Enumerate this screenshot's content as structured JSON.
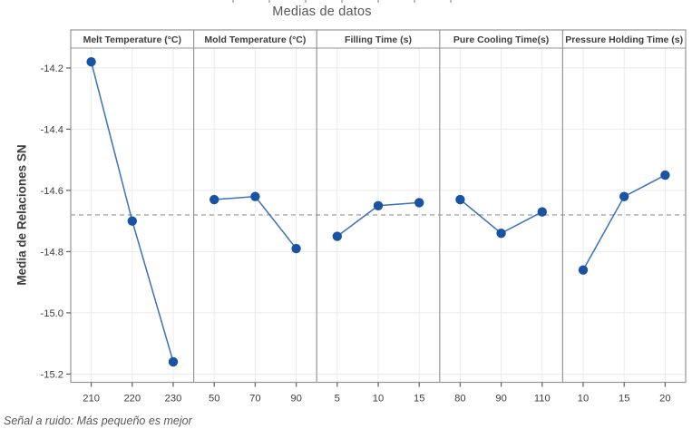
{
  "colors": {
    "accent_point": "#1A53A4",
    "accent_line": "#3B70BE",
    "grid": "#EBEBEB",
    "reference_dash": "#A8A8A8",
    "border": "#969696",
    "tick": "#606060",
    "text": "#3D3D3D",
    "title_text": "#565656",
    "footnote_text": "#585858"
  },
  "chart_data": {
    "type": "line",
    "subtype": "main-effects-plot",
    "title": "Medias de datos",
    "ylabel": "Media de Relaciones SN",
    "footnote": "Señal a ruido: Más pequeño es mejor",
    "grid": true,
    "legend": "none",
    "ylim": [
      -15.23,
      -14.13
    ],
    "yticks": [
      -14.2,
      -14.4,
      -14.6,
      -14.8,
      -15.0,
      -15.2
    ],
    "reference_line": -14.68,
    "panels": [
      {
        "header": "Melt Temperature (°C)",
        "categories": [
          "210",
          "220",
          "230"
        ],
        "values": [
          -14.18,
          -14.7,
          -15.16
        ]
      },
      {
        "header": "Mold Temperature (°C)",
        "categories": [
          "50",
          "70",
          "90"
        ],
        "values": [
          -14.63,
          -14.62,
          -14.79
        ]
      },
      {
        "header": "Filling Time (s)",
        "categories": [
          "5",
          "10",
          "15"
        ],
        "values": [
          -14.75,
          -14.65,
          -14.64
        ]
      },
      {
        "header": "Pure Cooling Time(s)",
        "categories": [
          "80",
          "90",
          "110"
        ],
        "values": [
          -14.63,
          -14.74,
          -14.67
        ]
      },
      {
        "header": "Pressure Holding Time (s)",
        "categories": [
          "10",
          "15",
          "20"
        ],
        "values": [
          -14.86,
          -14.62,
          -14.55
        ]
      }
    ]
  }
}
